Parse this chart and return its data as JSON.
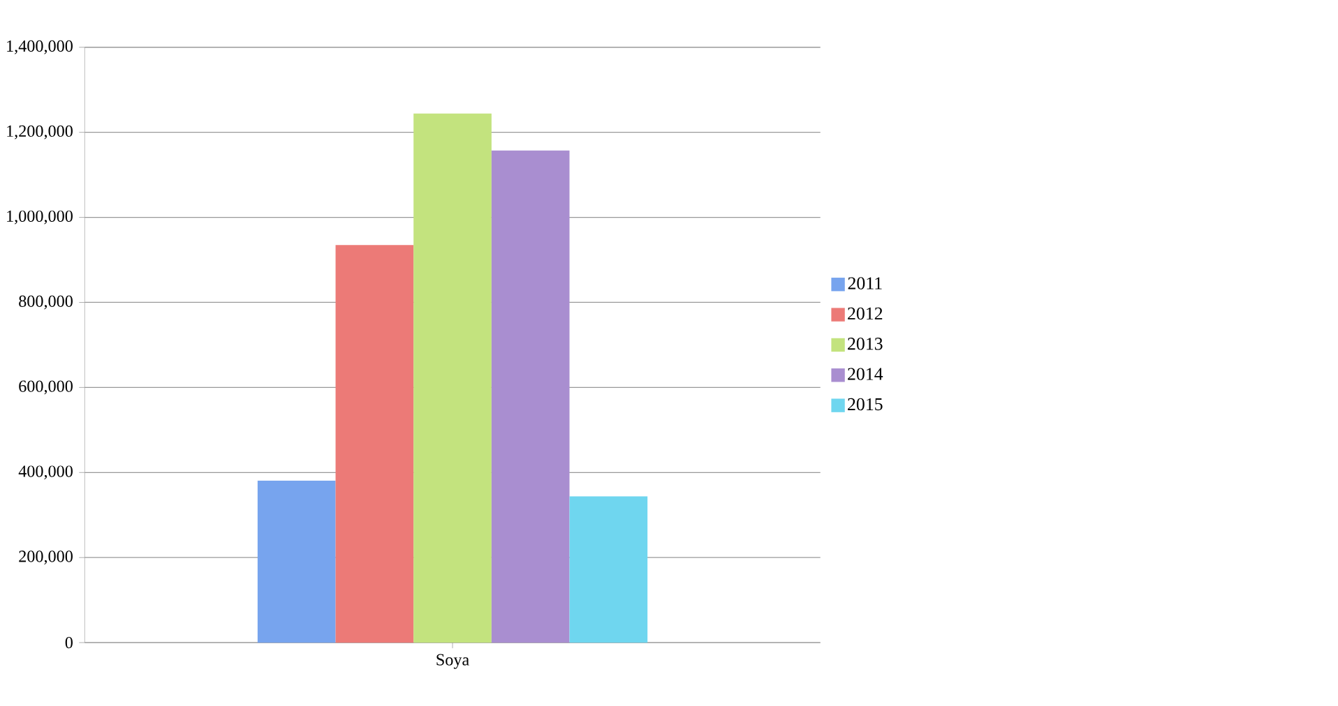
{
  "chart_data": {
    "type": "bar",
    "categories": [
      "Soya"
    ],
    "series": [
      {
        "name": "2011",
        "color": "#77a4ee",
        "values": [
          381000
        ]
      },
      {
        "name": "2012",
        "color": "#ec7a77",
        "values": [
          935000
        ]
      },
      {
        "name": "2013",
        "color": "#c3e37e",
        "values": [
          1244000
        ]
      },
      {
        "name": "2014",
        "color": "#a98ed0",
        "values": [
          1157000
        ]
      },
      {
        "name": "2015",
        "color": "#6fd6ef",
        "values": [
          344000
        ]
      }
    ],
    "ylim": [
      0,
      1400000
    ],
    "yticks": [
      {
        "value": 0,
        "label": "0"
      },
      {
        "value": 200000,
        "label": "200,000"
      },
      {
        "value": 400000,
        "label": "400,000"
      },
      {
        "value": 600000,
        "label": "600,000"
      },
      {
        "value": 800000,
        "label": "800,000"
      },
      {
        "value": 1000000,
        "label": "1,000,000"
      },
      {
        "value": 1200000,
        "label": "1,200,000"
      },
      {
        "value": 1400000,
        "label": "1,400,000"
      }
    ],
    "grid": "y",
    "legend": "right"
  }
}
